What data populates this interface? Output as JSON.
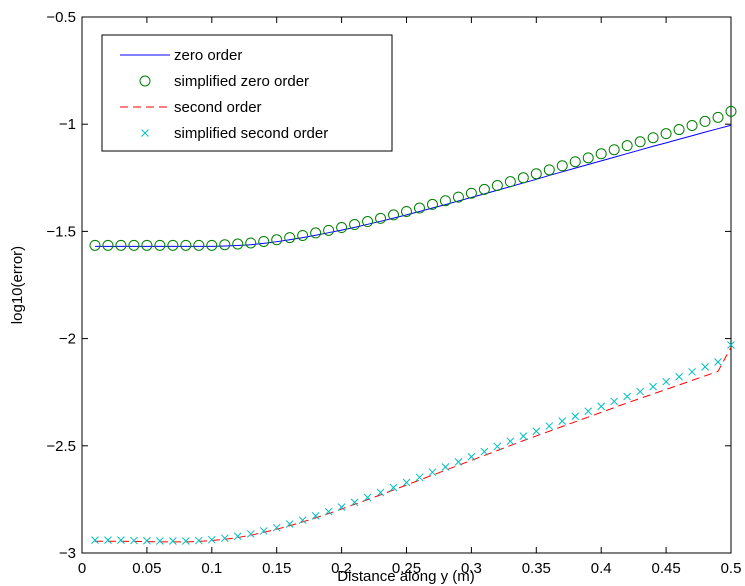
{
  "chart_data": {
    "type": "line",
    "title": "",
    "xlabel": "Distance along y (m)",
    "ylabel": "log10(error)",
    "xlim": [
      0,
      0.5
    ],
    "ylim": [
      -3,
      -0.5
    ],
    "x_ticks": [
      0,
      0.05,
      0.1,
      0.15,
      0.2,
      0.25,
      0.3,
      0.35,
      0.4,
      0.45,
      0.5
    ],
    "x_tick_labels": [
      "0",
      "0.05",
      "0.1",
      "0.15",
      "0.2",
      "0.25",
      "0.3",
      "0.35",
      "0.4",
      "0.45",
      "0.5"
    ],
    "y_ticks": [
      -3,
      -2.5,
      -2,
      -1.5,
      -1,
      -0.5
    ],
    "y_tick_labels": [
      "−3",
      "−2.5",
      "−2",
      "−1.5",
      "−1",
      "−0.5"
    ],
    "grid": false,
    "legend_position": "top-left",
    "x": [
      0.01,
      0.02,
      0.03,
      0.04,
      0.05,
      0.06,
      0.07,
      0.08,
      0.09,
      0.1,
      0.11,
      0.12,
      0.13,
      0.14,
      0.15,
      0.16,
      0.17,
      0.18,
      0.19,
      0.2,
      0.21,
      0.22,
      0.23,
      0.24,
      0.25,
      0.26,
      0.27,
      0.28,
      0.29,
      0.3,
      0.31,
      0.32,
      0.33,
      0.34,
      0.35,
      0.36,
      0.37,
      0.38,
      0.39,
      0.4,
      0.41,
      0.42,
      0.43,
      0.44,
      0.45,
      0.46,
      0.47,
      0.48,
      0.49,
      0.5
    ],
    "series": [
      {
        "name": "zero order",
        "style": "line",
        "color": "#0000ff",
        "values": [
          -1.57,
          -1.57,
          -1.57,
          -1.57,
          -1.57,
          -1.57,
          -1.57,
          -1.57,
          -1.57,
          -1.57,
          -1.568,
          -1.566,
          -1.562,
          -1.556,
          -1.548,
          -1.539,
          -1.529,
          -1.518,
          -1.506,
          -1.494,
          -1.481,
          -1.467,
          -1.453,
          -1.438,
          -1.423,
          -1.407,
          -1.391,
          -1.375,
          -1.358,
          -1.342,
          -1.325,
          -1.308,
          -1.291,
          -1.274,
          -1.257,
          -1.239,
          -1.222,
          -1.205,
          -1.188,
          -1.171,
          -1.154,
          -1.137,
          -1.12,
          -1.103,
          -1.087,
          -1.07,
          -1.054,
          -1.037,
          -1.021,
          -1.005
        ]
      },
      {
        "name": "simplified zero order",
        "style": "circle",
        "color": "#008000",
        "values": [
          -1.565,
          -1.565,
          -1.565,
          -1.565,
          -1.565,
          -1.565,
          -1.565,
          -1.565,
          -1.565,
          -1.565,
          -1.562,
          -1.559,
          -1.554,
          -1.547,
          -1.539,
          -1.529,
          -1.519,
          -1.507,
          -1.495,
          -1.482,
          -1.468,
          -1.454,
          -1.439,
          -1.423,
          -1.407,
          -1.391,
          -1.374,
          -1.357,
          -1.34,
          -1.322,
          -1.304,
          -1.286,
          -1.268,
          -1.25,
          -1.231,
          -1.213,
          -1.194,
          -1.175,
          -1.157,
          -1.138,
          -1.119,
          -1.1,
          -1.082,
          -1.063,
          -1.044,
          -1.025,
          -1.006,
          -0.987,
          -0.968,
          -0.94
        ]
      },
      {
        "name": "second order",
        "style": "dashed",
        "color": "#ff0000",
        "values": [
          -2.945,
          -2.945,
          -2.945,
          -2.946,
          -2.947,
          -2.948,
          -2.948,
          -2.948,
          -2.946,
          -2.942,
          -2.936,
          -2.928,
          -2.917,
          -2.904,
          -2.889,
          -2.873,
          -2.855,
          -2.836,
          -2.816,
          -2.795,
          -2.773,
          -2.751,
          -2.729,
          -2.706,
          -2.683,
          -2.66,
          -2.637,
          -2.614,
          -2.591,
          -2.568,
          -2.545,
          -2.522,
          -2.499,
          -2.476,
          -2.454,
          -2.432,
          -2.41,
          -2.388,
          -2.366,
          -2.344,
          -2.322,
          -2.3,
          -2.279,
          -2.258,
          -2.237,
          -2.216,
          -2.195,
          -2.174,
          -2.153,
          -2.04
        ]
      },
      {
        "name": "simplified second order",
        "style": "x",
        "color": "#00bfbf",
        "values": [
          -2.94,
          -2.94,
          -2.94,
          -2.942,
          -2.943,
          -2.944,
          -2.944,
          -2.944,
          -2.942,
          -2.938,
          -2.931,
          -2.922,
          -2.911,
          -2.897,
          -2.882,
          -2.865,
          -2.847,
          -2.827,
          -2.807,
          -2.786,
          -2.764,
          -2.741,
          -2.718,
          -2.695,
          -2.671,
          -2.647,
          -2.623,
          -2.599,
          -2.575,
          -2.551,
          -2.527,
          -2.503,
          -2.479,
          -2.455,
          -2.432,
          -2.408,
          -2.385,
          -2.362,
          -2.339,
          -2.316,
          -2.293,
          -2.27,
          -2.247,
          -2.224,
          -2.201,
          -2.178,
          -2.155,
          -2.132,
          -2.109,
          -2.03
        ]
      }
    ]
  }
}
